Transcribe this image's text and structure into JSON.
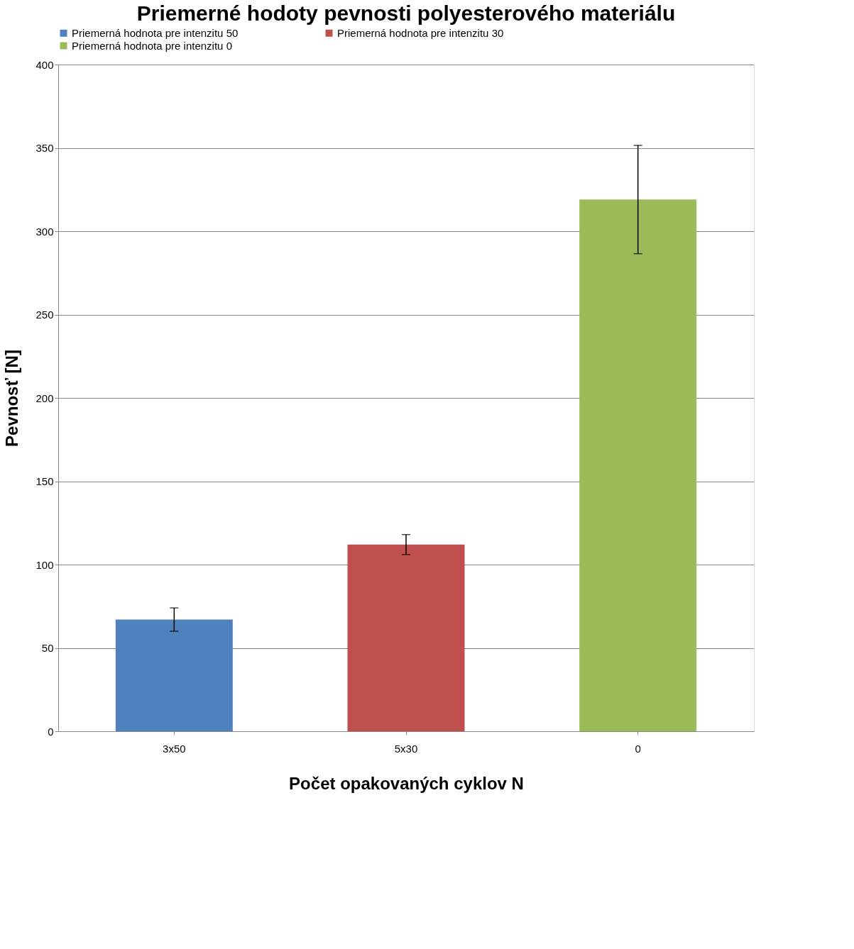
{
  "chart_data": {
    "type": "bar",
    "title": "Priemerné hodoty pevnosti polyesterového materiálu",
    "xlabel": "Počet opakovaných cyklov N",
    "ylabel": "Pevnosť [N]",
    "categories": [
      "3x50",
      "5x30",
      "0"
    ],
    "series": [
      {
        "name": "Priemerná hodnota pre intenzitu 50",
        "color": "#4f81bd",
        "values": [
          67,
          null,
          null
        ],
        "errors": [
          7,
          null,
          null
        ]
      },
      {
        "name": "Priemerná hodnota pre intenzitu 30",
        "color": "#c0504d",
        "values": [
          null,
          112,
          null
        ],
        "errors": [
          null,
          6,
          null
        ]
      },
      {
        "name": "Priemerná hodnota pre intenzitu 0",
        "color": "#9bbb59",
        "values": [
          null,
          null,
          319
        ],
        "errors": [
          null,
          null,
          32.5
        ]
      }
    ],
    "ylim": [
      0,
      400
    ],
    "yticks": [
      0,
      50,
      100,
      150,
      200,
      250,
      300,
      350,
      400
    ],
    "grid": "y",
    "legend": "top"
  }
}
